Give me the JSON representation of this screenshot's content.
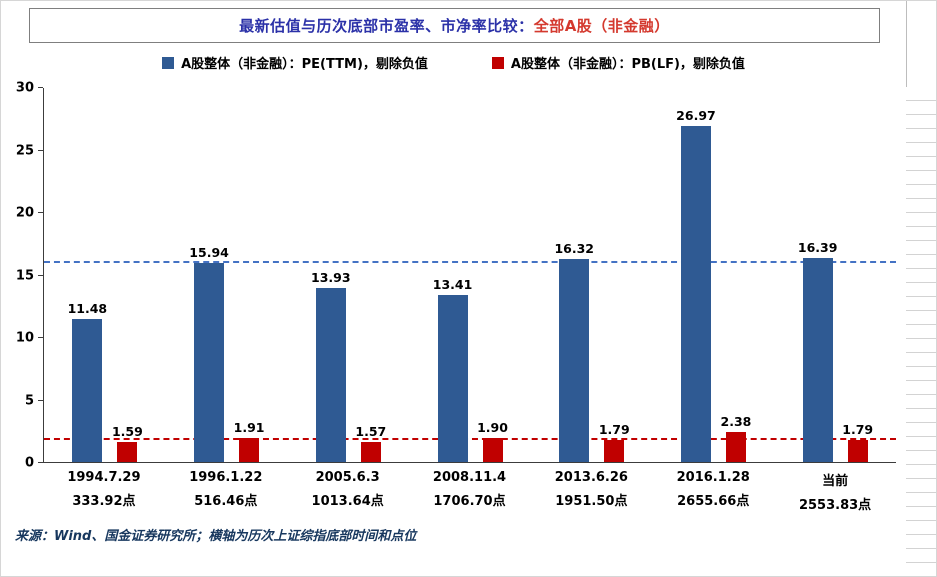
{
  "header": {
    "title_main": "最新估值与历次底部市盈率、市净率比较：",
    "title_highlight": "全部A股（非金融）"
  },
  "footer": {
    "source": "来源：Wind、国金证券研究所；横轴为历次上证综指底部时间和点位"
  },
  "chart_data": {
    "type": "bar",
    "title": "最新估值与历次底部市盈率、市净率比较：全部A股（非金融）",
    "legend_position": "top",
    "grid": false,
    "ylim": [
      0,
      30
    ],
    "yticks": [
      0,
      5,
      10,
      15,
      20,
      25,
      30
    ],
    "categories": [
      {
        "date": "1994.7.29",
        "points": "333.92点"
      },
      {
        "date": "1996.1.22",
        "points": "516.46点"
      },
      {
        "date": "2005.6.3",
        "points": "1013.64点"
      },
      {
        "date": "2008.11.4",
        "points": "1706.70点"
      },
      {
        "date": "2013.6.26",
        "points": "1951.50点"
      },
      {
        "date": "2016.1.28",
        "points": "2655.66点"
      },
      {
        "date": "当前",
        "points": "2553.83点"
      }
    ],
    "series": [
      {
        "name": "A股整体（非金融）：PE(TTM)，剔除负值",
        "color": "#2f5a93",
        "values": [
          11.48,
          15.94,
          13.93,
          13.41,
          16.32,
          26.97,
          16.39
        ]
      },
      {
        "name": "A股整体（非金融）：PB(LF)，剔除负值",
        "color": "#c00000",
        "values": [
          1.59,
          1.91,
          1.57,
          1.9,
          1.79,
          2.38,
          1.79
        ]
      }
    ],
    "reference_lines": [
      {
        "value": 16.0,
        "color": "#4472c4"
      },
      {
        "value": 1.8,
        "color": "#c00000"
      }
    ]
  }
}
